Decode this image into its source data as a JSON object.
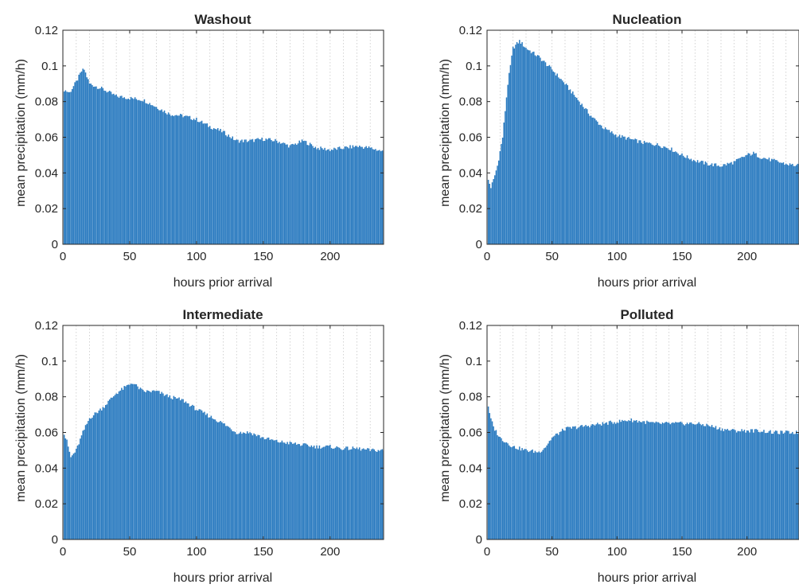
{
  "colors": {
    "bar": "#2b7bc0",
    "grid": "#c8c8c8",
    "axis": "#262626",
    "text": "#262626"
  },
  "chart_data": [
    {
      "type": "bar",
      "title": "Washout",
      "xlabel": "hours prior arrival",
      "ylabel": "mean precipitation (mm/h)",
      "xlim": [
        0,
        240
      ],
      "ylim": [
        0,
        0.12
      ],
      "xticks": [
        0,
        50,
        100,
        150,
        200
      ],
      "yticks": [
        "0",
        "0.02",
        "0.04",
        "0.06",
        "0.08",
        "0.1",
        "0.12"
      ],
      "vertical_grid": true,
      "bar_hours": [
        1,
        240
      ],
      "profile_hours": [
        0,
        5,
        10,
        14,
        16,
        20,
        30,
        40,
        50,
        60,
        70,
        80,
        90,
        100,
        110,
        120,
        130,
        140,
        150,
        160,
        170,
        180,
        185,
        190,
        200,
        210,
        220,
        230,
        240
      ],
      "profile_values": [
        0.087,
        0.085,
        0.091,
        0.097,
        0.098,
        0.09,
        0.087,
        0.083,
        0.082,
        0.081,
        0.077,
        0.073,
        0.072,
        0.07,
        0.066,
        0.063,
        0.058,
        0.058,
        0.059,
        0.058,
        0.055,
        0.058,
        0.056,
        0.054,
        0.053,
        0.054,
        0.055,
        0.054,
        0.052
      ]
    },
    {
      "type": "bar",
      "title": "Nucleation",
      "xlabel": "hours prior arrival",
      "ylabel": "mean precipitation (mm/h)",
      "xlim": [
        0,
        240
      ],
      "ylim": [
        0,
        0.12
      ],
      "xticks": [
        0,
        50,
        100,
        150,
        200
      ],
      "yticks": [
        "0",
        "0.02",
        "0.04",
        "0.06",
        "0.08",
        "0.1",
        "0.12"
      ],
      "vertical_grid": true,
      "bar_hours": [
        1,
        240
      ],
      "profile_hours": [
        0,
        3,
        5,
        8,
        12,
        16,
        20,
        25,
        30,
        40,
        50,
        60,
        70,
        80,
        90,
        100,
        110,
        120,
        130,
        140,
        150,
        160,
        170,
        180,
        190,
        200,
        205,
        210,
        220,
        230,
        240
      ],
      "profile_values": [
        0.038,
        0.032,
        0.036,
        0.044,
        0.06,
        0.09,
        0.11,
        0.114,
        0.11,
        0.105,
        0.098,
        0.09,
        0.081,
        0.072,
        0.065,
        0.061,
        0.059,
        0.057,
        0.056,
        0.054,
        0.05,
        0.047,
        0.045,
        0.044,
        0.046,
        0.05,
        0.051,
        0.049,
        0.047,
        0.045,
        0.044
      ]
    },
    {
      "type": "bar",
      "title": "Intermediate",
      "xlabel": "hours prior arrival",
      "ylabel": "mean precipitation (mm/h)",
      "xlim": [
        0,
        240
      ],
      "ylim": [
        0,
        0.12
      ],
      "xticks": [
        0,
        50,
        100,
        150,
        200
      ],
      "yticks": [
        "0",
        "0.02",
        "0.04",
        "0.06",
        "0.08",
        "0.1",
        "0.12"
      ],
      "vertical_grid": true,
      "bar_hours": [
        1,
        240
      ],
      "profile_hours": [
        0,
        3,
        6,
        10,
        15,
        20,
        30,
        40,
        50,
        52,
        60,
        70,
        80,
        90,
        100,
        110,
        120,
        130,
        140,
        150,
        160,
        170,
        180,
        190,
        200,
        210,
        220,
        230,
        240
      ],
      "profile_values": [
        0.061,
        0.055,
        0.046,
        0.05,
        0.06,
        0.068,
        0.074,
        0.082,
        0.087,
        0.088,
        0.083,
        0.083,
        0.08,
        0.078,
        0.073,
        0.069,
        0.065,
        0.06,
        0.06,
        0.057,
        0.055,
        0.054,
        0.053,
        0.052,
        0.052,
        0.051,
        0.051,
        0.05,
        0.05
      ]
    },
    {
      "type": "bar",
      "title": "Polluted",
      "xlabel": "hours prior arrival",
      "ylabel": "mean precipitation (mm/h)",
      "xlim": [
        0,
        240
      ],
      "ylim": [
        0,
        0.12
      ],
      "xticks": [
        0,
        50,
        100,
        150,
        200
      ],
      "yticks": [
        "0",
        "0.02",
        "0.04",
        "0.06",
        "0.08",
        "0.1",
        "0.12"
      ],
      "vertical_grid": true,
      "bar_hours": [
        1,
        240
      ],
      "profile_hours": [
        0,
        2,
        5,
        10,
        20,
        30,
        40,
        45,
        50,
        60,
        70,
        80,
        90,
        100,
        110,
        120,
        130,
        140,
        150,
        160,
        170,
        180,
        190,
        200,
        210,
        220,
        230,
        240
      ],
      "profile_values": [
        0.08,
        0.07,
        0.063,
        0.057,
        0.052,
        0.05,
        0.049,
        0.052,
        0.057,
        0.062,
        0.063,
        0.064,
        0.065,
        0.066,
        0.067,
        0.066,
        0.065,
        0.065,
        0.065,
        0.065,
        0.064,
        0.062,
        0.061,
        0.061,
        0.061,
        0.06,
        0.06,
        0.06
      ]
    }
  ]
}
